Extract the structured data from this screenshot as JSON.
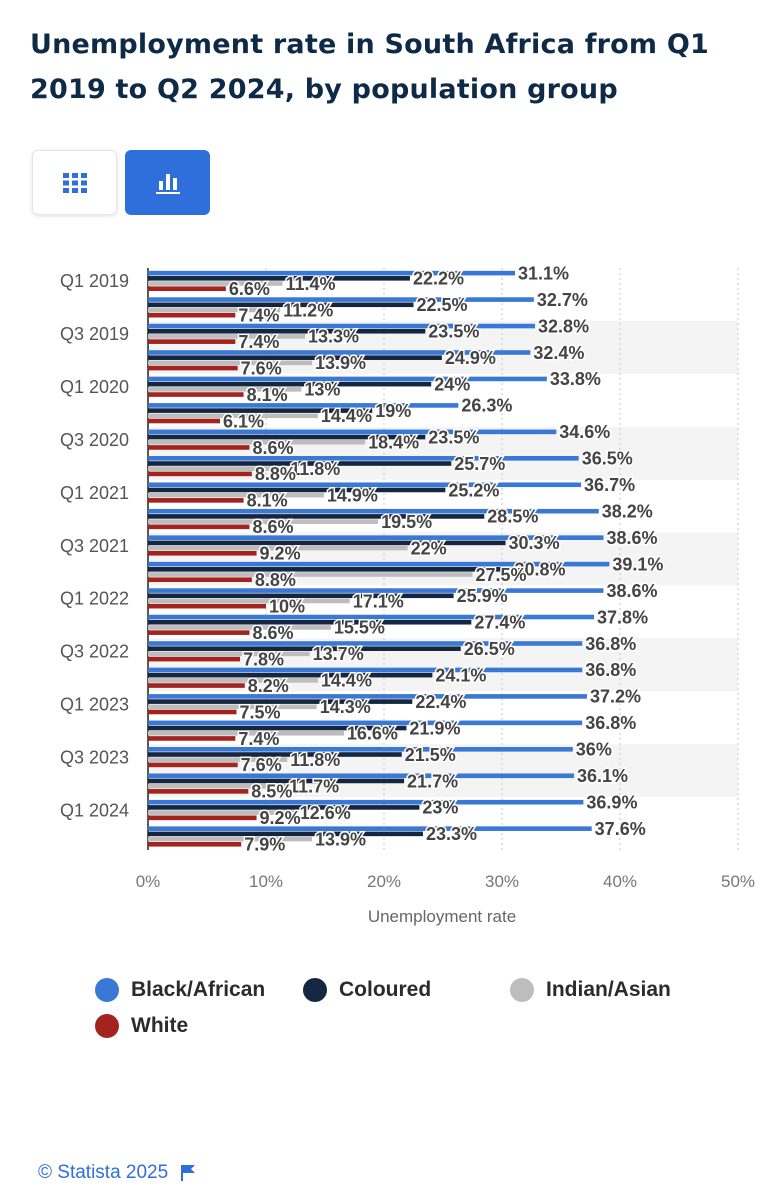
{
  "page": {
    "title": "Unemployment rate in South Africa from Q1 2019 to Q2 2024, by population group",
    "view_toggle": {
      "table_icon": "grid-icon",
      "chart_icon": "bar-chart-icon",
      "active": "chart"
    },
    "footer": {
      "credit": "© Statista 2025",
      "flag_icon": "flag-icon"
    }
  },
  "colors": {
    "Black/African": "#3a78d6",
    "Coloured": "#142640",
    "Indian/Asian": "#bdbdbd",
    "White": "#a3231f",
    "band": "#f4f4f4",
    "grid": "#cfcfcf",
    "accent": "#2f6fdc"
  },
  "chart_data": {
    "type": "bar",
    "orientation": "horizontal",
    "title": "Unemployment rate in South Africa from Q1 2019 to Q2 2024, by population group",
    "xlabel": "Unemployment rate",
    "ylabel": "",
    "xlim": [
      0,
      50
    ],
    "x_ticks": [
      "0%",
      "10%",
      "20%",
      "30%",
      "40%",
      "50%"
    ],
    "grid": "vertical dotted",
    "legend_position": "bottom",
    "categories": [
      "Q1 2019",
      "Q2 2019",
      "Q3 2019",
      "Q4 2019",
      "Q1 2020",
      "Q2 2020",
      "Q3 2020",
      "Q4 2020",
      "Q1 2021",
      "Q2 2021",
      "Q3 2021",
      "Q4 2021",
      "Q1 2022",
      "Q2 2022",
      "Q3 2022",
      "Q4 2022",
      "Q1 2023",
      "Q2 2023",
      "Q3 2023",
      "Q4 2023",
      "Q1 2024",
      "Q2 2024"
    ],
    "visible_category_labels": [
      "Q1 2019",
      "Q3 2019",
      "Q1 2020",
      "Q3 2020",
      "Q1 2021",
      "Q3 2021",
      "Q1 2022",
      "Q3 2022",
      "Q1 2023",
      "Q3 2023",
      "Q1 2024"
    ],
    "series": [
      {
        "name": "Black/African",
        "values": [
          31.1,
          32.7,
          32.8,
          32.4,
          33.8,
          26.3,
          34.6,
          36.5,
          36.7,
          38.2,
          38.6,
          39.1,
          38.6,
          37.8,
          36.8,
          36.8,
          37.2,
          36.8,
          36,
          36.1,
          36.9,
          37.6
        ]
      },
      {
        "name": "Coloured",
        "values": [
          22.2,
          22.5,
          23.5,
          24.9,
          24,
          19,
          23.5,
          25.7,
          25.2,
          28.5,
          30.3,
          30.8,
          25.9,
          27.4,
          26.5,
          24.1,
          22.4,
          21.9,
          21.5,
          21.7,
          23,
          23.3
        ]
      },
      {
        "name": "Indian/Asian",
        "values": [
          11.4,
          11.2,
          13.3,
          13.9,
          13,
          14.4,
          18.4,
          11.8,
          14.9,
          19.5,
          22,
          27.5,
          17.1,
          15.5,
          13.7,
          14.4,
          14.3,
          16.6,
          11.8,
          11.7,
          12.6,
          13.9
        ]
      },
      {
        "name": "White",
        "values": [
          6.6,
          7.4,
          7.4,
          7.6,
          8.1,
          6.1,
          8.6,
          8.8,
          8.1,
          8.6,
          9.2,
          8.8,
          10,
          8.6,
          7.8,
          8.2,
          7.5,
          7.4,
          7.6,
          8.5,
          9.2,
          7.9
        ]
      }
    ],
    "data_labels": {
      "Black/African": [
        "31.1%",
        "32.7%",
        "32.8%",
        "32.4%",
        "33.8%",
        "26.3%",
        "34.6%",
        "36.5%",
        "36.7%",
        "38.2%",
        "38.6%",
        "39.1%",
        "38.6%",
        "37.8%",
        "36.8%",
        "36.8%",
        "37.2%",
        "36.8%",
        "36%",
        "36.1%",
        "36.9%",
        "37.6%"
      ],
      "Coloured": [
        "22.2%",
        "22.5%",
        "23.5%",
        "24.9%",
        "24%",
        "19%",
        "23.5%",
        "25.7%",
        "25.2%",
        "28.5%",
        "30.3%",
        "30.8%",
        "25.9%",
        "27.4%",
        "26.5%",
        "24.1%",
        "22.4%",
        "21.9%",
        "21.5%",
        "21.7%",
        "23%",
        "23.3%"
      ],
      "Indian/Asian": [
        "11.4%",
        "11.2%",
        "13.3%",
        "13.9%",
        "13%",
        "14.4%",
        "18.4%",
        "11.8%",
        "14.9%",
        "19.5%",
        "22%",
        "27.5%",
        "17.1%",
        "15.5%",
        "13.7%",
        "14.4%",
        "14.3%",
        "16.6%",
        "11.8%",
        "11.7%",
        "12.6%",
        "13.9%"
      ],
      "White": [
        "6.6%",
        "7.4%",
        "7.4%",
        "7.6%",
        "8.1%",
        "6.1%",
        "8.6%",
        "8.8%",
        "8.1%",
        "8.6%",
        "9.2%",
        "8.8%",
        "10%",
        "8.6%",
        "7.8%",
        "8.2%",
        "7.5%",
        "7.4%",
        "7.6%",
        "8.5%",
        "9.2%",
        "7.9%"
      ]
    },
    "legend": [
      "Black/African",
      "Coloured",
      "Indian/Asian",
      "White"
    ]
  }
}
